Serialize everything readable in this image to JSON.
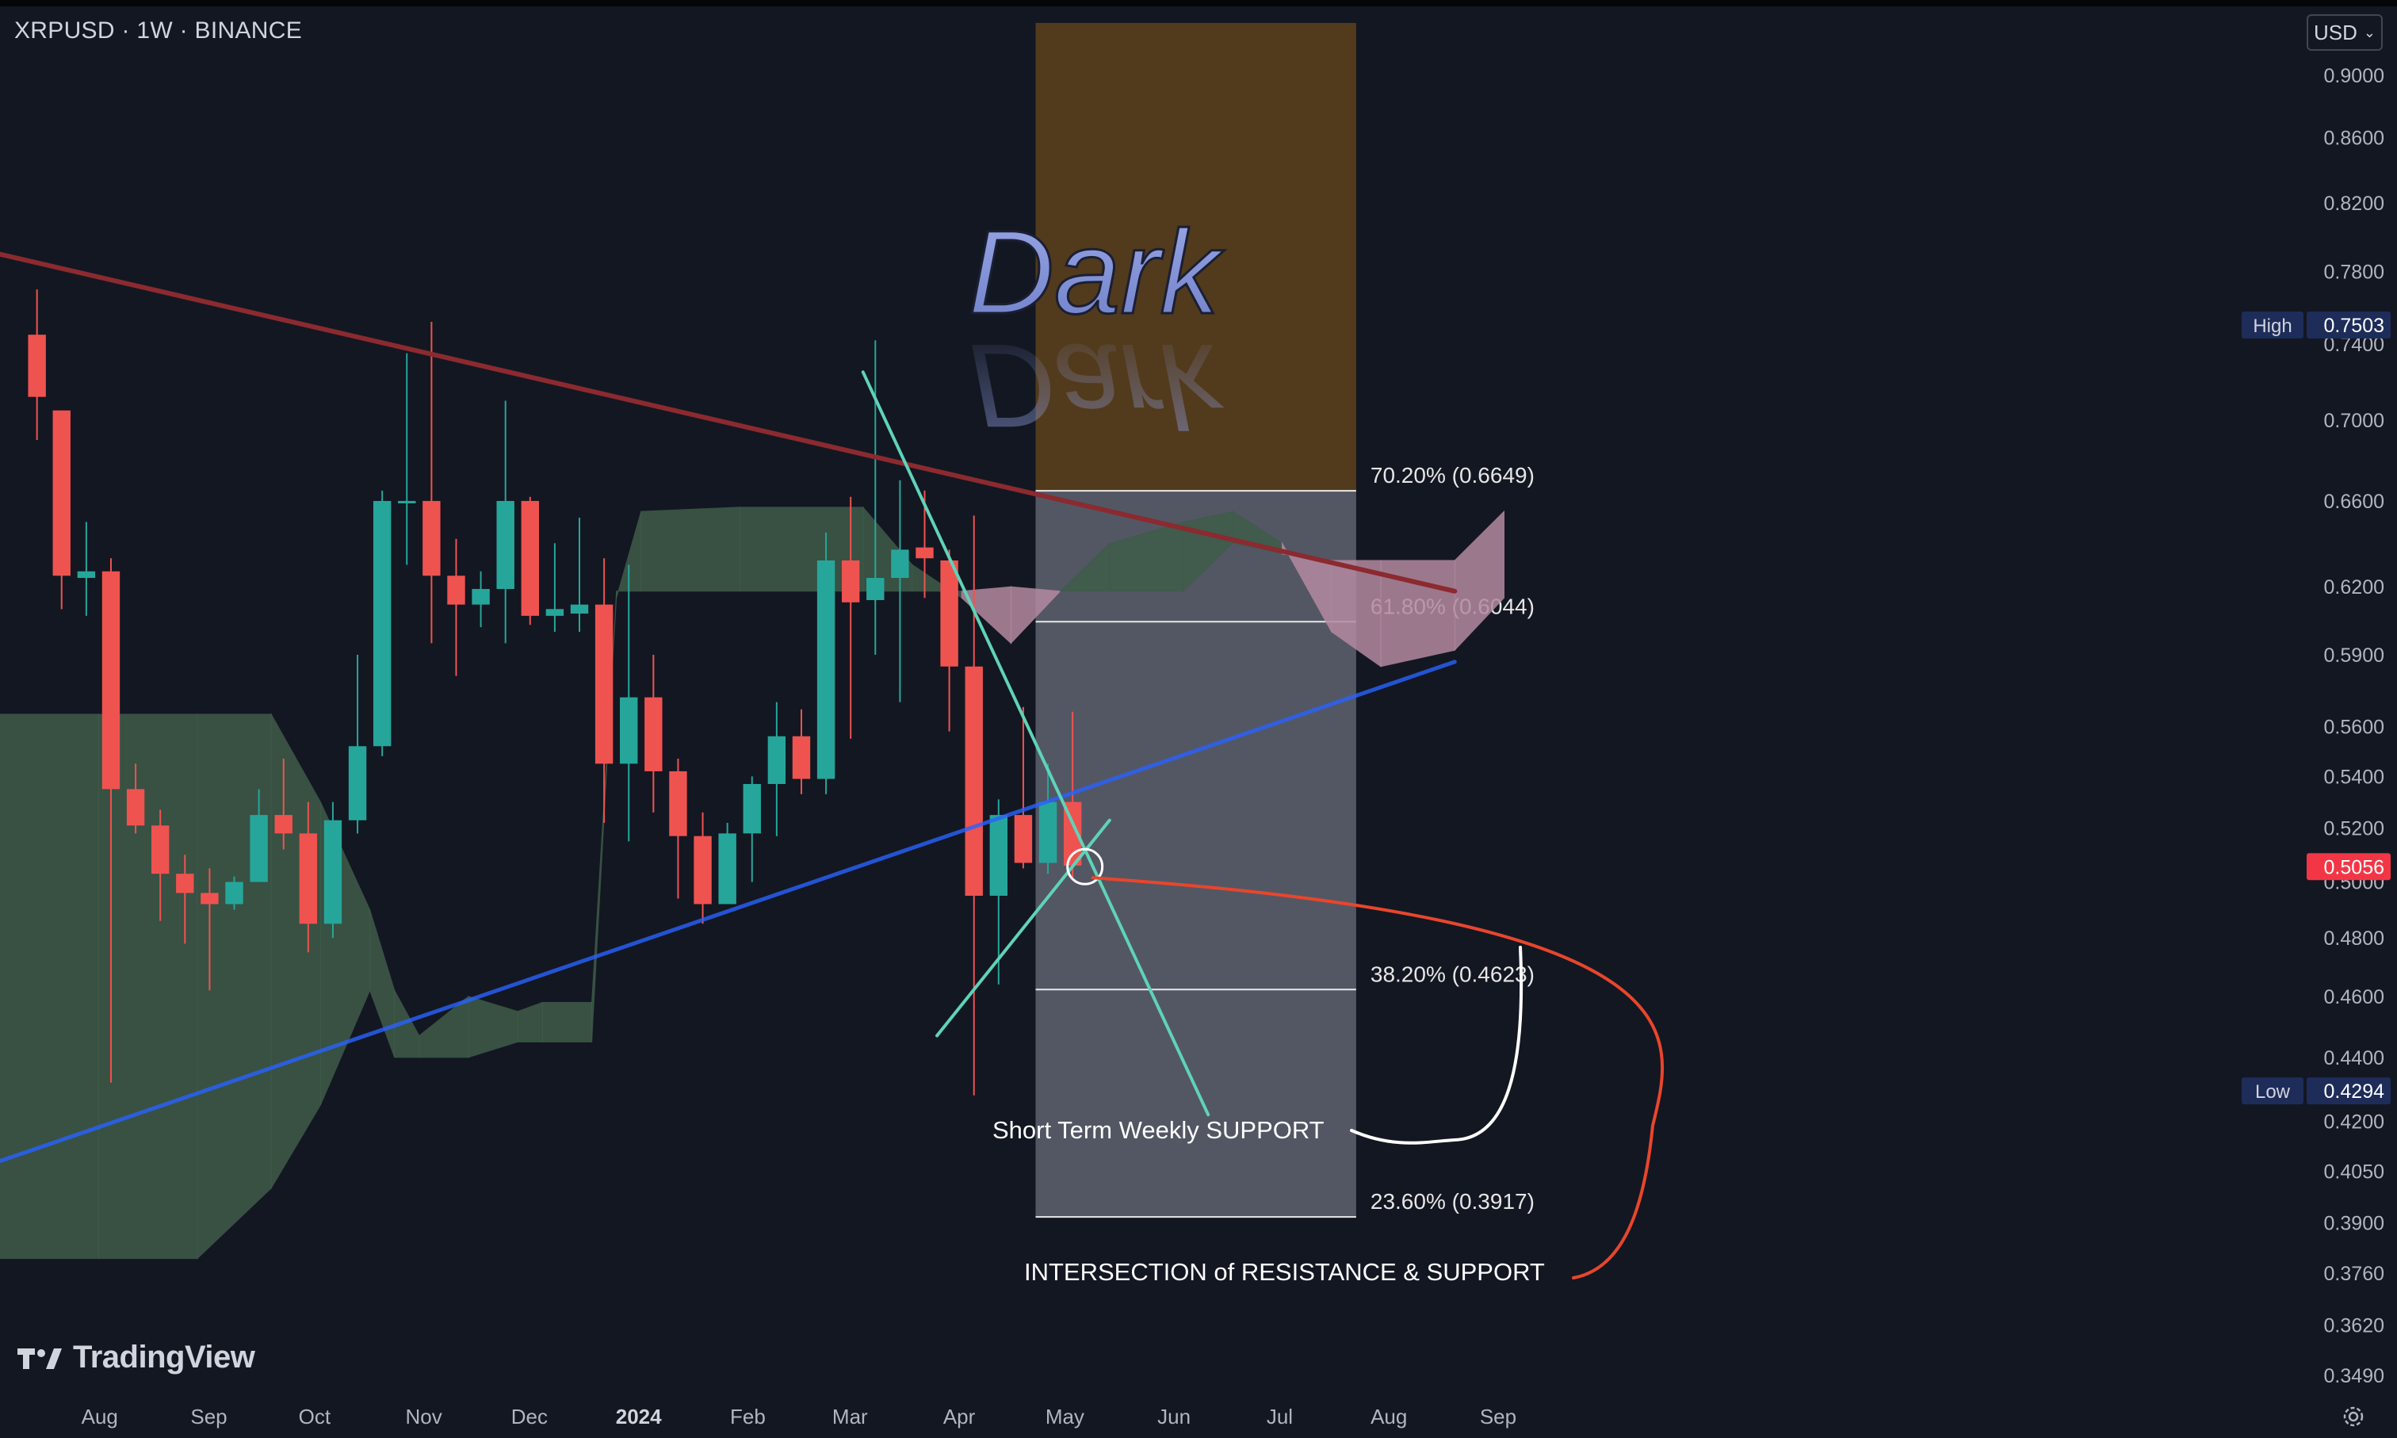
{
  "header": {
    "symbol_title": "XRPUSD · 1W · BINANCE",
    "currency": "USD"
  },
  "branding": {
    "logo_text": "TradingView"
  },
  "watermark": {
    "text": "Dark"
  },
  "colors": {
    "background": "#131722",
    "bull": "#26a69a",
    "bear": "#ef5350",
    "resistance_line": "#8b2a2f",
    "support_line": "#2962ff",
    "trendline": "#5fd3b8",
    "cloud_bull": "#3f5c49",
    "cloud_bear": "#b48aa0",
    "fib_upper_zone": "#5a3e1c",
    "fib_lower_zone": "#5f6370"
  },
  "chart_data": {
    "type": "candlestick",
    "symbol": "XRPUSD",
    "interval": "1W",
    "exchange": "BINANCE",
    "y_scale": "log",
    "ylim": [
      0.345,
      0.935
    ],
    "y_ticks": [
      "0.9000",
      "0.8600",
      "0.8200",
      "0.7800",
      "0.7400",
      "0.7000",
      "0.6600",
      "0.6200",
      "0.5900",
      "0.5600",
      "0.5400",
      "0.5200",
      "0.5000",
      "0.4800",
      "0.4600",
      "0.4400",
      "0.4200",
      "0.4050",
      "0.3900",
      "0.3760",
      "0.3620",
      "0.3490"
    ],
    "x_ticks": [
      {
        "label": "Aug",
        "date": "2023-08-01"
      },
      {
        "label": "Sep",
        "date": "2023-09-01"
      },
      {
        "label": "Oct",
        "date": "2023-10-01"
      },
      {
        "label": "Nov",
        "date": "2023-11-01"
      },
      {
        "label": "Dec",
        "date": "2023-12-01"
      },
      {
        "label": "2024",
        "date": "2024-01-01"
      },
      {
        "label": "Feb",
        "date": "2024-02-01"
      },
      {
        "label": "Mar",
        "date": "2024-03-01"
      },
      {
        "label": "Apr",
        "date": "2024-04-01"
      },
      {
        "label": "May",
        "date": "2024-05-01"
      },
      {
        "label": "Jun",
        "date": "2024-06-01"
      },
      {
        "label": "Jul",
        "date": "2024-07-01"
      },
      {
        "label": "Aug",
        "date": "2024-08-01"
      },
      {
        "label": "Sep",
        "date": "2024-09-01"
      }
    ],
    "candles": [
      {
        "date": "2023-07-17",
        "open": 0.745,
        "high": 0.77,
        "close": 0.712,
        "low": 0.69
      },
      {
        "date": "2023-07-24",
        "open": 0.705,
        "high": 0.705,
        "close": 0.625,
        "low": 0.61
      },
      {
        "date": "2023-07-31",
        "open": 0.624,
        "high": 0.65,
        "close": 0.627,
        "low": 0.607
      },
      {
        "date": "2023-08-07",
        "open": 0.627,
        "high": 0.633,
        "close": 0.535,
        "low": 0.432
      },
      {
        "date": "2023-08-14",
        "open": 0.535,
        "high": 0.545,
        "close": 0.521,
        "low": 0.518
      },
      {
        "date": "2023-08-21",
        "open": 0.521,
        "high": 0.527,
        "close": 0.503,
        "low": 0.486
      },
      {
        "date": "2023-08-28",
        "open": 0.503,
        "high": 0.51,
        "close": 0.496,
        "low": 0.478
      },
      {
        "date": "2023-09-04",
        "open": 0.496,
        "high": 0.505,
        "close": 0.492,
        "low": 0.462
      },
      {
        "date": "2023-09-11",
        "open": 0.492,
        "high": 0.502,
        "close": 0.5,
        "low": 0.49
      },
      {
        "date": "2023-09-18",
        "open": 0.5,
        "high": 0.535,
        "close": 0.525,
        "low": 0.5
      },
      {
        "date": "2023-09-25",
        "open": 0.525,
        "high": 0.547,
        "close": 0.518,
        "low": 0.512
      },
      {
        "date": "2023-10-02",
        "open": 0.518,
        "high": 0.53,
        "close": 0.485,
        "low": 0.475
      },
      {
        "date": "2023-10-09",
        "open": 0.485,
        "high": 0.53,
        "close": 0.523,
        "low": 0.48
      },
      {
        "date": "2023-10-16",
        "open": 0.523,
        "high": 0.59,
        "close": 0.552,
        "low": 0.518
      },
      {
        "date": "2023-10-23",
        "open": 0.552,
        "high": 0.665,
        "close": 0.66,
        "low": 0.548
      },
      {
        "date": "2023-10-30",
        "open": 0.66,
        "high": 0.735,
        "close": 0.66,
        "low": 0.63
      },
      {
        "date": "2023-11-06",
        "open": 0.66,
        "high": 0.752,
        "close": 0.625,
        "low": 0.595
      },
      {
        "date": "2023-11-13",
        "open": 0.625,
        "high": 0.642,
        "close": 0.612,
        "low": 0.581
      },
      {
        "date": "2023-11-20",
        "open": 0.612,
        "high": 0.627,
        "close": 0.619,
        "low": 0.602
      },
      {
        "date": "2023-11-27",
        "open": 0.619,
        "high": 0.71,
        "close": 0.66,
        "low": 0.595
      },
      {
        "date": "2023-12-04",
        "open": 0.66,
        "high": 0.662,
        "close": 0.607,
        "low": 0.603
      },
      {
        "date": "2023-12-11",
        "open": 0.607,
        "high": 0.64,
        "close": 0.61,
        "low": 0.6
      },
      {
        "date": "2023-12-18",
        "open": 0.608,
        "high": 0.652,
        "close": 0.612,
        "low": 0.6
      },
      {
        "date": "2023-12-25",
        "open": 0.612,
        "high": 0.633,
        "close": 0.545,
        "low": 0.522
      },
      {
        "date": "2024-01-01",
        "open": 0.545,
        "high": 0.63,
        "close": 0.572,
        "low": 0.515
      },
      {
        "date": "2024-01-08",
        "open": 0.572,
        "high": 0.59,
        "close": 0.542,
        "low": 0.526
      },
      {
        "date": "2024-01-15",
        "open": 0.542,
        "high": 0.547,
        "close": 0.517,
        "low": 0.494
      },
      {
        "date": "2024-01-22",
        "open": 0.517,
        "high": 0.526,
        "close": 0.492,
        "low": 0.485
      },
      {
        "date": "2024-01-29",
        "open": 0.492,
        "high": 0.522,
        "close": 0.518,
        "low": 0.493
      },
      {
        "date": "2024-02-05",
        "open": 0.518,
        "high": 0.54,
        "close": 0.537,
        "low": 0.5
      },
      {
        "date": "2024-02-12",
        "open": 0.537,
        "high": 0.57,
        "close": 0.556,
        "low": 0.517
      },
      {
        "date": "2024-02-19",
        "open": 0.556,
        "high": 0.567,
        "close": 0.539,
        "low": 0.533
      },
      {
        "date": "2024-02-26",
        "open": 0.539,
        "high": 0.645,
        "close": 0.632,
        "low": 0.533
      },
      {
        "date": "2024-03-04",
        "open": 0.632,
        "high": 0.662,
        "close": 0.613,
        "low": 0.555
      },
      {
        "date": "2024-03-11",
        "open": 0.614,
        "high": 0.742,
        "close": 0.624,
        "low": 0.59
      },
      {
        "date": "2024-03-18",
        "open": 0.624,
        "high": 0.67,
        "close": 0.637,
        "low": 0.57
      },
      {
        "date": "2024-03-25",
        "open": 0.638,
        "high": 0.665,
        "close": 0.633,
        "low": 0.615
      },
      {
        "date": "2024-04-01",
        "open": 0.632,
        "high": 0.637,
        "close": 0.585,
        "low": 0.558
      },
      {
        "date": "2024-04-08",
        "open": 0.585,
        "high": 0.653,
        "close": 0.495,
        "low": 0.428
      },
      {
        "date": "2024-04-15",
        "open": 0.495,
        "high": 0.531,
        "close": 0.525,
        "low": 0.464
      },
      {
        "date": "2024-04-22",
        "open": 0.525,
        "high": 0.568,
        "close": 0.507,
        "low": 0.505
      },
      {
        "date": "2024-04-29",
        "open": 0.507,
        "high": 0.545,
        "close": 0.53,
        "low": 0.503
      },
      {
        "date": "2024-05-06",
        "open": 0.53,
        "high": 0.566,
        "close": 0.506,
        "low": 0.501
      }
    ],
    "trendlines": [
      {
        "name": "Long-term resistance",
        "color": "#8b2a2f",
        "from": {
          "date": "2023-07-10",
          "price": 0.79
        },
        "to": {
          "date": "2024-08-26",
          "price": 0.618
        }
      },
      {
        "name": "Long-term support",
        "color": "#2962ff",
        "from": {
          "date": "2023-07-10",
          "price": 0.408
        },
        "to": {
          "date": "2024-08-26",
          "price": 0.587
        }
      },
      {
        "name": "Short-term resistance",
        "color": "#5fd3b8",
        "from": {
          "date": "2024-03-11",
          "price": 0.725
        },
        "to": {
          "date": "2024-06-17",
          "price": 0.422
        }
      },
      {
        "name": "Short Term Weekly SUPPORT",
        "color": "#5fd3b8",
        "from": {
          "date": "2024-04-01",
          "price": 0.447
        },
        "to": {
          "date": "2024-05-20",
          "price": 0.523
        }
      }
    ],
    "fibonacci": {
      "from_date": "2024-04-29",
      "to_date": "2024-07-29",
      "high": 0.7503,
      "low": 0.4294,
      "levels": [
        {
          "ratio": 0.702,
          "price": 0.6649,
          "label": "70.20% (0.6649)"
        },
        {
          "ratio": 0.618,
          "price": 0.6044,
          "label": "61.80% (0.6044)"
        },
        {
          "ratio": 0.382,
          "price": 0.4623,
          "label": "38.20% (0.4623)"
        },
        {
          "ratio": 0.236,
          "price": 0.3917,
          "label": "23.60% (0.3917)"
        }
      ],
      "upper_zone_top": 0.935
    },
    "ichimoku_cloud": [
      {
        "date": "2023-07-10",
        "a": 0.565,
        "b": 0.38
      },
      {
        "date": "2023-08-07",
        "a": 0.565,
        "b": 0.38
      },
      {
        "date": "2023-09-04",
        "a": 0.565,
        "b": 0.38
      },
      {
        "date": "2023-09-25",
        "a": 0.565,
        "b": 0.4
      },
      {
        "date": "2023-10-09",
        "a": 0.53,
        "b": 0.425
      },
      {
        "date": "2023-10-23",
        "a": 0.49,
        "b": 0.462
      },
      {
        "date": "2023-10-30",
        "a": 0.462,
        "b": 0.44
      },
      {
        "date": "2023-11-06",
        "a": 0.447,
        "b": 0.44
      },
      {
        "date": "2023-11-20",
        "a": 0.46,
        "b": 0.44
      },
      {
        "date": "2023-12-04",
        "a": 0.455,
        "b": 0.445
      },
      {
        "date": "2023-12-11",
        "a": 0.458,
        "b": 0.445
      },
      {
        "date": "2023-12-25",
        "a": 0.458,
        "b": 0.445
      },
      {
        "date": "2024-01-01",
        "a": 0.615,
        "b": 0.618
      },
      {
        "date": "2024-01-08",
        "a": 0.655,
        "b": 0.618
      },
      {
        "date": "2024-02-05",
        "a": 0.657,
        "b": 0.618
      },
      {
        "date": "2024-03-11",
        "a": 0.657,
        "b": 0.618
      },
      {
        "date": "2024-03-25",
        "a": 0.63,
        "b": 0.618
      },
      {
        "date": "2024-04-08",
        "a": 0.615,
        "b": 0.618
      },
      {
        "date": "2024-04-22",
        "a": 0.595,
        "b": 0.62
      },
      {
        "date": "2024-05-06",
        "a": 0.618,
        "b": 0.618
      },
      {
        "date": "2024-05-20",
        "a": 0.64,
        "b": 0.618
      },
      {
        "date": "2024-06-10",
        "a": 0.65,
        "b": 0.618
      },
      {
        "date": "2024-06-24",
        "a": 0.655,
        "b": 0.64
      },
      {
        "date": "2024-07-08",
        "a": 0.64,
        "b": 0.635
      },
      {
        "date": "2024-07-22",
        "a": 0.6,
        "b": 0.632
      },
      {
        "date": "2024-08-05",
        "a": 0.585,
        "b": 0.632
      },
      {
        "date": "2024-08-26",
        "a": 0.592,
        "b": 0.632
      },
      {
        "date": "2024-09-09",
        "a": 0.615,
        "b": 0.655
      }
    ],
    "intersection_point": {
      "date": "2024-05-13",
      "price": 0.5056
    },
    "price_labels": {
      "high": {
        "label": "High",
        "value": "0.7503"
      },
      "low": {
        "label": "Low",
        "value": "0.4294"
      },
      "last": {
        "value": "0.5056"
      }
    },
    "annotations": [
      {
        "text": "Short Term Weekly SUPPORT"
      },
      {
        "text": "INTERSECTION of RESISTANCE & SUPPORT"
      }
    ]
  }
}
